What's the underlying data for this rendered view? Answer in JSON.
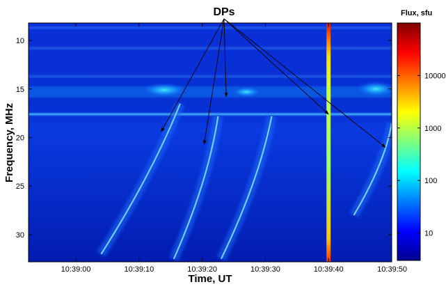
{
  "chart_data": {
    "type": "heatmap",
    "title": "",
    "xlabel": "Time, UT",
    "ylabel": "Frequency, MHz",
    "x_ticks": [
      "10:39:00",
      "10:39:10",
      "10:39:20",
      "10:39:30",
      "10:39:40",
      "10:39:50"
    ],
    "x_tick_seconds": [
      0,
      10,
      20,
      30,
      40,
      50
    ],
    "x_range_seconds": [
      -7.5,
      50
    ],
    "y_ticks": [
      10,
      15,
      20,
      25,
      30
    ],
    "ylim": [
      8.2,
      32.8
    ],
    "y_inverted": true,
    "colorbar": {
      "title": "Flux, sfu",
      "scale": "log",
      "ticks": [
        10,
        100,
        1000,
        10000
      ],
      "range": [
        3,
        100000
      ],
      "colormap": "jet"
    },
    "annotation": {
      "label": "DPs",
      "targets": [
        {
          "time_s": 13.5,
          "freq_mhz": 19.4
        },
        {
          "time_s": 20.3,
          "freq_mhz": 20.7
        },
        {
          "time_s": 23.8,
          "freq_mhz": 15.8
        },
        {
          "time_s": 40.0,
          "freq_mhz": 17.6
        },
        {
          "time_s": 49.0,
          "freq_mhz": 21.0
        }
      ]
    },
    "features": {
      "spike_time_s": 40.0,
      "band_frequencies_mhz": [
        8.7,
        10.8,
        13.7,
        15.3,
        17.6
      ],
      "drifting_bursts": [
        {
          "start_time_s": 16.5,
          "start_freq_mhz": 16.5,
          "end_time_s": 4.0,
          "end_freq_mhz": 32.0
        },
        {
          "start_time_s": 22.5,
          "start_freq_mhz": 17.8,
          "end_time_s": 15.5,
          "end_freq_mhz": 32.5
        },
        {
          "start_time_s": 31.0,
          "start_freq_mhz": 17.8,
          "end_time_s": 23.0,
          "end_freq_mhz": 32.5
        },
        {
          "start_time_s": 50.0,
          "start_freq_mhz": 18.5,
          "end_time_s": 44.0,
          "end_freq_mhz": 28.0
        }
      ]
    }
  }
}
